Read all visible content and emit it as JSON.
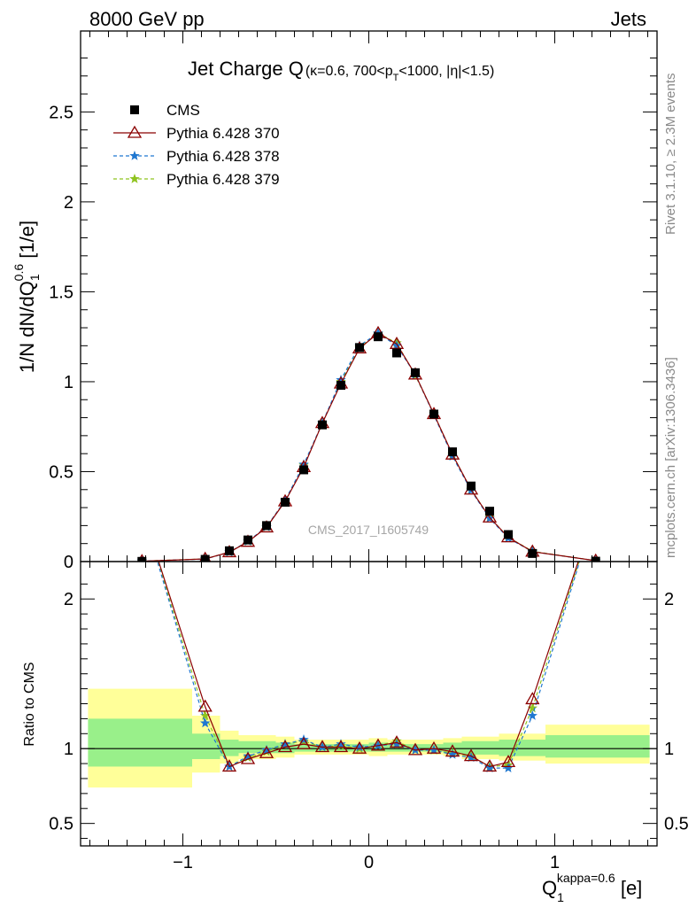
{
  "header": {
    "energy": "8000 GeV pp",
    "process": "Jets",
    "rivet_note": "Rivet 3.1.10, ≥ 2.3M events",
    "mcplots_note": "mcplots.cern.ch [arXiv:1306.3436]",
    "analysis_id": "CMS_2017_I1605749"
  },
  "title": {
    "main": "Jet Charge Q",
    "cut_kappa": "(κ=0.6, 700<p",
    "cut_sub": "T",
    "cut_rest": "<1000, |η|<1.5)"
  },
  "axes": {
    "y_main_label": "1/N dN/dQ",
    "y_main_sub": "1",
    "y_main_sup": "0.6",
    "y_main_unit": " [1/e]",
    "y_ratio_label": "Ratio to CMS",
    "x_label": "Q",
    "x_sub": "1",
    "x_sup": "kappa=0.6",
    "x_unit": " [e]"
  },
  "legend": [
    {
      "label": "CMS",
      "color": "#000000",
      "marker": "square",
      "line": "none"
    },
    {
      "label": "Pythia 6.428 370",
      "color": "#8b0000",
      "marker": "triangle",
      "line": "solid"
    },
    {
      "label": "Pythia 6.428 378",
      "color": "#1f77d0",
      "marker": "star",
      "line": "dashed"
    },
    {
      "label": "Pythia 6.428 379",
      "color": "#8fc31f",
      "marker": "star",
      "line": "dashed"
    }
  ],
  "chart_data": {
    "type": "scatter",
    "xlim": [
      -1.55,
      1.55
    ],
    "ylim": [
      0,
      2.95
    ],
    "ratio_ylim": [
      0.35,
      2.25
    ],
    "x_ticks": [
      -1,
      0,
      1
    ],
    "x_tick_labels": [
      "−1",
      "0",
      "1"
    ],
    "y_ticks": [
      0,
      0.5,
      1,
      1.5,
      2,
      2.5
    ],
    "y_tick_labels": [
      "0",
      "0.5",
      "1",
      "1.5",
      "2",
      "2.5"
    ],
    "ratio_ticks": [
      0.5,
      1,
      2
    ],
    "ratio_tick_labels": [
      "0.5",
      "1",
      "2"
    ],
    "x": [
      -1.22,
      -0.88,
      -0.75,
      -0.65,
      -0.55,
      -0.45,
      -0.35,
      -0.25,
      -0.15,
      -0.05,
      0.05,
      0.15,
      0.25,
      0.35,
      0.45,
      0.55,
      0.65,
      0.75,
      0.88,
      1.22
    ],
    "series": [
      {
        "name": "CMS",
        "values": [
          0.001,
          0.012,
          0.06,
          0.12,
          0.2,
          0.33,
          0.51,
          0.76,
          0.98,
          1.19,
          1.25,
          1.16,
          1.05,
          0.82,
          0.61,
          0.42,
          0.28,
          0.15,
          0.045,
          0.002
        ]
      },
      {
        "name": "Pythia 6.428 370",
        "values": [
          0.002,
          0.015,
          0.052,
          0.11,
          0.19,
          0.335,
          0.525,
          0.77,
          0.99,
          1.185,
          1.27,
          1.21,
          1.04,
          0.82,
          0.595,
          0.4,
          0.245,
          0.135,
          0.055,
          0.005
        ]
      },
      {
        "name": "Pythia 6.428 378",
        "values": [
          0.0025,
          0.014,
          0.052,
          0.113,
          0.193,
          0.34,
          0.54,
          0.77,
          1.01,
          1.2,
          1.27,
          1.2,
          1.04,
          0.815,
          0.585,
          0.395,
          0.24,
          0.13,
          0.055,
          0.005
        ]
      },
      {
        "name": "Pythia 6.428 379",
        "values": [
          0.0025,
          0.015,
          0.052,
          0.112,
          0.192,
          0.34,
          0.535,
          0.77,
          1.0,
          1.19,
          1.27,
          1.215,
          1.035,
          0.82,
          0.595,
          0.4,
          0.245,
          0.135,
          0.057,
          0.005
        ]
      }
    ],
    "ratios": [
      {
        "name": "Pythia 6.428 370",
        "values": [
          2.6,
          1.28,
          0.88,
          0.93,
          0.97,
          1.01,
          1.03,
          1.01,
          1.01,
          1.0,
          1.02,
          1.04,
          0.99,
          1.0,
          0.98,
          0.95,
          0.88,
          0.91,
          1.33,
          2.6
        ]
      },
      {
        "name": "Pythia 6.428 378",
        "values": [
          2.6,
          1.17,
          0.88,
          0.95,
          0.99,
          1.03,
          1.06,
          1.01,
          1.03,
          1.01,
          1.02,
          1.03,
          0.99,
          0.99,
          0.96,
          0.94,
          0.87,
          0.87,
          1.22,
          2.6
        ]
      },
      {
        "name": "Pythia 6.428 379",
        "values": [
          2.6,
          1.22,
          0.88,
          0.94,
          0.98,
          1.03,
          1.05,
          1.01,
          1.02,
          1.0,
          1.02,
          1.05,
          0.99,
          0.99,
          0.97,
          0.95,
          0.88,
          0.89,
          1.27,
          2.6
        ]
      }
    ],
    "ratio_bands": [
      {
        "x": [
          -1.55,
          -0.95
        ],
        "yellow": [
          0.74,
          1.4
        ],
        "green": [
          0.88,
          1.2
        ]
      },
      {
        "x": [
          -0.95,
          -0.8
        ],
        "yellow": [
          0.84,
          1.22
        ],
        "green": [
          0.93,
          1.1
        ]
      },
      {
        "x": [
          -0.8,
          -0.7
        ],
        "yellow": [
          0.9,
          1.12
        ],
        "green": [
          0.95,
          1.06
        ]
      },
      {
        "x": [
          -0.7,
          -0.5
        ],
        "yellow": [
          0.93,
          1.09
        ],
        "green": [
          0.97,
          1.05
        ]
      },
      {
        "x": [
          -0.5,
          -0.4
        ],
        "yellow": [
          0.94,
          1.08
        ],
        "green": [
          0.97,
          1.04
        ]
      },
      {
        "x": [
          -0.4,
          -0.1
        ],
        "yellow": [
          0.96,
          1.06
        ],
        "green": [
          0.98,
          1.03
        ]
      },
      {
        "x": [
          -0.1,
          0.0
        ],
        "yellow": [
          0.96,
          1.06
        ],
        "green": [
          0.98,
          1.03
        ]
      },
      {
        "x": [
          0.0,
          0.1
        ],
        "yellow": [
          0.95,
          1.07
        ],
        "green": [
          0.98,
          1.04
        ]
      },
      {
        "x": [
          0.1,
          0.4
        ],
        "yellow": [
          0.96,
          1.06
        ],
        "green": [
          0.98,
          1.03
        ]
      },
      {
        "x": [
          0.4,
          0.5
        ],
        "yellow": [
          0.95,
          1.07
        ],
        "green": [
          0.97,
          1.04
        ]
      },
      {
        "x": [
          0.5,
          0.7
        ],
        "yellow": [
          0.93,
          1.08
        ],
        "green": [
          0.96,
          1.05
        ]
      },
      {
        "x": [
          0.7,
          0.95
        ],
        "yellow": [
          0.92,
          1.1
        ],
        "green": [
          0.95,
          1.06
        ]
      },
      {
        "x": [
          0.95,
          1.55
        ],
        "yellow": [
          0.9,
          1.16
        ],
        "green": [
          0.94,
          1.09
        ]
      }
    ]
  }
}
